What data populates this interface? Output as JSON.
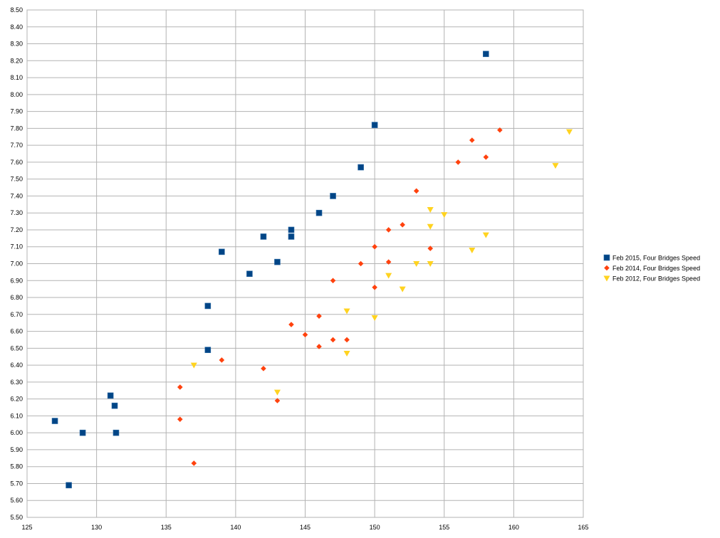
{
  "chart_data": {
    "type": "scatter",
    "title": "",
    "xlabel": "",
    "ylabel": "",
    "xlim": [
      125,
      165
    ],
    "ylim": [
      5.5,
      8.5
    ],
    "x_ticks": [
      "125",
      "130",
      "135",
      "140",
      "145",
      "150",
      "155",
      "160",
      "165"
    ],
    "y_ticks": [
      "5.50",
      "5.60",
      "5.70",
      "5.80",
      "5.90",
      "6.00",
      "6.10",
      "6.20",
      "6.30",
      "6.40",
      "6.50",
      "6.60",
      "6.70",
      "6.80",
      "6.90",
      "7.00",
      "7.10",
      "7.20",
      "7.30",
      "7.40",
      "7.50",
      "7.60",
      "7.70",
      "7.80",
      "7.90",
      "8.00",
      "8.10",
      "8.20",
      "8.30",
      "8.40",
      "8.50"
    ],
    "grid": true,
    "legend_position": "right",
    "series": [
      {
        "name": "Feb 2015, Four Bridges Speed",
        "marker": "square",
        "color": "#004586",
        "points": [
          [
            127,
            6.07
          ],
          [
            128,
            5.69
          ],
          [
            129,
            6.0
          ],
          [
            131,
            6.22
          ],
          [
            131.3,
            6.16
          ],
          [
            131.4,
            6.0
          ],
          [
            138,
            6.75
          ],
          [
            138,
            6.49
          ],
          [
            139,
            7.07
          ],
          [
            141,
            6.94
          ],
          [
            142,
            7.16
          ],
          [
            143,
            7.01
          ],
          [
            144,
            7.2
          ],
          [
            144,
            7.16
          ],
          [
            146,
            7.3
          ],
          [
            147,
            7.4
          ],
          [
            149,
            7.57
          ],
          [
            150,
            7.82
          ],
          [
            158,
            8.24
          ]
        ]
      },
      {
        "name": "Feb 2014, Four Bridges Speed",
        "marker": "diamond",
        "color": "#ff420e",
        "points": [
          [
            136,
            6.27
          ],
          [
            136,
            6.08
          ],
          [
            137,
            5.82
          ],
          [
            139,
            6.43
          ],
          [
            142,
            6.38
          ],
          [
            143,
            6.19
          ],
          [
            144,
            6.64
          ],
          [
            145,
            6.58
          ],
          [
            146,
            6.69
          ],
          [
            146,
            6.51
          ],
          [
            147,
            6.9
          ],
          [
            147,
            6.55
          ],
          [
            148,
            6.55
          ],
          [
            149,
            7.0
          ],
          [
            150,
            7.1
          ],
          [
            150,
            6.86
          ],
          [
            151,
            7.2
          ],
          [
            151,
            7.01
          ],
          [
            152,
            7.23
          ],
          [
            153,
            7.43
          ],
          [
            154,
            7.09
          ],
          [
            156,
            7.6
          ],
          [
            157,
            7.73
          ],
          [
            158,
            7.63
          ],
          [
            159,
            7.79
          ]
        ]
      },
      {
        "name": "Feb 2012, Four Bridges Speed",
        "marker": "triangle-down",
        "color": "#ffd320",
        "points": [
          [
            137,
            6.4
          ],
          [
            143,
            6.24
          ],
          [
            148,
            6.72
          ],
          [
            148,
            6.47
          ],
          [
            150,
            6.68
          ],
          [
            151,
            6.93
          ],
          [
            152,
            6.85
          ],
          [
            153,
            7.0
          ],
          [
            154,
            7.32
          ],
          [
            154,
            7.22
          ],
          [
            154,
            7.0
          ],
          [
            155,
            7.29
          ],
          [
            157,
            7.08
          ],
          [
            158,
            7.17
          ],
          [
            163,
            7.58
          ],
          [
            164,
            7.78
          ]
        ]
      }
    ]
  }
}
